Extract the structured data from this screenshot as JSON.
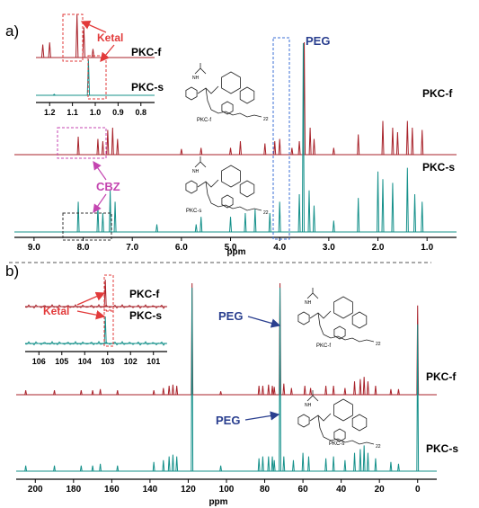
{
  "panel_a": {
    "label": "a)",
    "trace_top": "PKC-f",
    "trace_bottom": "PKC-s",
    "inset_top": "PKC-f",
    "inset_bottom": "PKC-s",
    "ketal": "Ketal",
    "peg": "PEG",
    "cbz": "CBZ",
    "axis_label": "ppm",
    "struct_top_caption": "PKC-f",
    "struct_bottom_caption": "PKC-s",
    "struct_subscript": "22"
  },
  "panel_b": {
    "label": "b)",
    "trace_top": "PKC-f",
    "trace_bottom": "PKC-s",
    "inset_top": "PKC-f",
    "inset_bottom": "PKC-s",
    "ketal": "Ketal",
    "peg_top": "PEG",
    "peg_bottom": "PEG",
    "axis_label": "ppm",
    "struct_top_caption": "PKC-f",
    "struct_bottom_caption": "PKC-s",
    "struct_subscript": "22"
  },
  "colors": {
    "red": "#a8222a",
    "teal": "#14908a",
    "blue": "#2a3f8f",
    "ketal_red": "#e23a3a",
    "cbz": "#c445b0",
    "box_blue": "#3b6fd6"
  },
  "chart_data": [
    {
      "type": "line",
      "panel": "a",
      "xlabel": "ppm",
      "x_ticks": [
        9.0,
        8.0,
        7.0,
        6.0,
        5.0,
        4.0,
        3.0,
        2.0,
        1.0
      ],
      "xlim": [
        9.4,
        0.4
      ],
      "series": [
        {
          "name": "PKC-f",
          "peaks": [
            [
              8.1,
              0.16
            ],
            [
              7.7,
              0.14
            ],
            [
              7.6,
              0.12
            ],
            [
              7.5,
              0.22
            ],
            [
              7.4,
              0.24
            ],
            [
              7.3,
              0.14
            ],
            [
              6.0,
              0.05
            ],
            [
              5.6,
              0.06
            ],
            [
              5.0,
              0.06
            ],
            [
              4.8,
              0.12
            ],
            [
              4.3,
              0.1
            ],
            [
              4.1,
              0.12
            ],
            [
              4.0,
              0.14
            ],
            [
              3.75,
              0.06
            ],
            [
              3.6,
              0.12
            ],
            [
              3.5,
              1.0
            ],
            [
              3.38,
              0.24
            ],
            [
              3.3,
              0.14
            ],
            [
              2.9,
              0.06
            ],
            [
              2.4,
              0.18
            ],
            [
              1.9,
              0.3
            ],
            [
              1.7,
              0.24
            ],
            [
              1.6,
              0.2
            ],
            [
              1.4,
              0.3
            ],
            [
              1.3,
              0.24
            ],
            [
              1.1,
              0.22
            ]
          ]
        },
        {
          "name": "PKC-s",
          "peaks": [
            [
              8.1,
              0.16
            ],
            [
              7.7,
              0.14
            ],
            [
              7.6,
              0.1
            ],
            [
              7.45,
              0.22
            ],
            [
              7.35,
              0.16
            ],
            [
              6.5,
              0.04
            ],
            [
              5.7,
              0.04
            ],
            [
              5.6,
              0.08
            ],
            [
              5.0,
              0.08
            ],
            [
              4.7,
              0.1
            ],
            [
              4.5,
              0.12
            ],
            [
              4.2,
              0.1
            ],
            [
              4.0,
              0.16
            ],
            [
              3.6,
              0.2
            ],
            [
              3.52,
              1.0
            ],
            [
              3.4,
              0.22
            ],
            [
              3.3,
              0.14
            ],
            [
              2.9,
              0.06
            ],
            [
              2.4,
              0.18
            ],
            [
              2.0,
              0.32
            ],
            [
              1.9,
              0.28
            ],
            [
              1.7,
              0.26
            ],
            [
              1.4,
              0.34
            ],
            [
              1.25,
              0.2
            ],
            [
              1.1,
              0.16
            ]
          ]
        }
      ],
      "inset": {
        "x_ticks": [
          1.2,
          1.1,
          1.0,
          0.9,
          0.8
        ],
        "PKC-f_peaks": [
          [
            1.23,
            0.3
          ],
          [
            1.2,
            0.35
          ],
          [
            1.08,
            1.0
          ],
          [
            1.05,
            0.7
          ],
          [
            1.01,
            0.2
          ]
        ],
        "PKC-s_peaks": [
          [
            1.18,
            0.03
          ],
          [
            1.03,
            1.0
          ]
        ]
      }
    },
    {
      "type": "line",
      "panel": "b",
      "xlabel": "ppm",
      "x_ticks": [
        200,
        180,
        160,
        140,
        120,
        100,
        80,
        60,
        40,
        20,
        0
      ],
      "xlim": [
        210,
        -10
      ],
      "series": [
        {
          "name": "PKC-f",
          "peaks": [
            [
              205,
              0.04
            ],
            [
              190,
              0.04
            ],
            [
              176,
              0.04
            ],
            [
              170,
              0.04
            ],
            [
              166,
              0.05
            ],
            [
              157,
              0.04
            ],
            [
              138,
              0.04
            ],
            [
              133,
              0.06
            ],
            [
              130,
              0.08
            ],
            [
              128,
              0.09
            ],
            [
              126,
              0.08
            ],
            [
              118,
              1.0
            ],
            [
              103,
              0.03
            ],
            [
              83,
              0.08
            ],
            [
              81,
              0.08
            ],
            [
              78,
              0.09
            ],
            [
              76,
              0.08
            ],
            [
              75,
              0.07
            ],
            [
              72,
              1.0
            ],
            [
              70,
              0.1
            ],
            [
              66,
              0.06
            ],
            [
              59,
              0.08
            ],
            [
              56,
              0.06
            ],
            [
              48,
              0.08
            ],
            [
              44,
              0.08
            ],
            [
              38,
              0.06
            ],
            [
              33,
              0.12
            ],
            [
              30,
              0.14
            ],
            [
              28,
              0.16
            ],
            [
              26,
              0.12
            ],
            [
              22,
              0.08
            ],
            [
              14,
              0.05
            ],
            [
              10,
              0.05
            ],
            [
              0,
              0.8
            ]
          ]
        },
        {
          "name": "PKC-s",
          "peaks": [
            [
              205,
              0.03
            ],
            [
              190,
              0.03
            ],
            [
              176,
              0.03
            ],
            [
              170,
              0.03
            ],
            [
              166,
              0.04
            ],
            [
              157,
              0.03
            ],
            [
              138,
              0.05
            ],
            [
              133,
              0.06
            ],
            [
              130,
              0.08
            ],
            [
              128,
              0.09
            ],
            [
              126,
              0.08
            ],
            [
              118,
              1.0
            ],
            [
              103,
              0.03
            ],
            [
              83,
              0.07
            ],
            [
              81,
              0.08
            ],
            [
              78,
              0.08
            ],
            [
              76,
              0.08
            ],
            [
              75,
              0.06
            ],
            [
              72,
              1.0
            ],
            [
              70,
              0.08
            ],
            [
              65,
              0.06
            ],
            [
              60,
              0.1
            ],
            [
              57,
              0.08
            ],
            [
              48,
              0.07
            ],
            [
              44,
              0.08
            ],
            [
              38,
              0.06
            ],
            [
              33,
              0.1
            ],
            [
              30,
              0.12
            ],
            [
              28,
              0.14
            ],
            [
              26,
              0.1
            ],
            [
              22,
              0.07
            ],
            [
              14,
              0.05
            ],
            [
              10,
              0.04
            ],
            [
              0,
              0.8
            ]
          ]
        }
      ],
      "inset": {
        "x_ticks": [
          106,
          105,
          104,
          103,
          102,
          101
        ],
        "PKC-f_peaks": [
          [
            103.1,
            1.0
          ]
        ],
        "PKC-s_peaks": [
          [
            103.1,
            1.0
          ]
        ]
      }
    }
  ]
}
